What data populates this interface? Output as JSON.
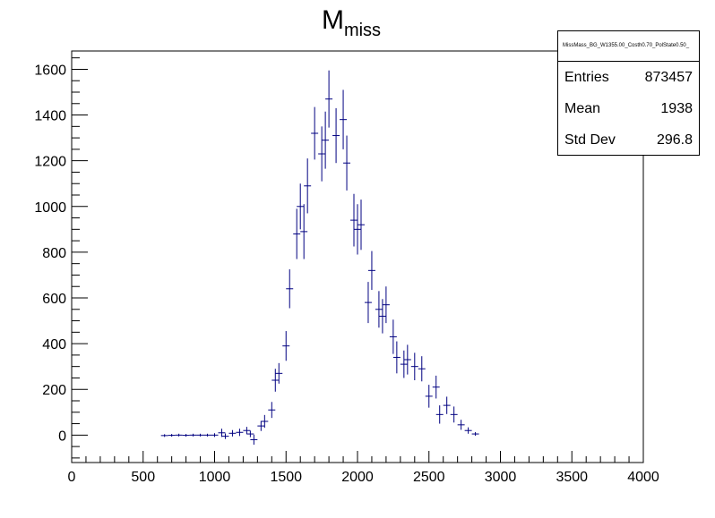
{
  "chart_data": {
    "type": "scatter",
    "title": "M",
    "title_subscript": "miss",
    "xlabel": "",
    "ylabel": "",
    "xlim": [
      0,
      4000
    ],
    "ylim": [
      -120,
      1680
    ],
    "x_ticks": [
      0,
      500,
      1000,
      1500,
      2000,
      2500,
      3000,
      3500,
      4000
    ],
    "y_ticks": [
      0,
      200,
      400,
      600,
      800,
      1000,
      1200,
      1400,
      1600
    ],
    "marker_color": "#000080",
    "bin_width": 50,
    "grid": false,
    "points": [
      {
        "x": 650,
        "y": -2,
        "err": 6
      },
      {
        "x": 700,
        "y": -1,
        "err": 6
      },
      {
        "x": 750,
        "y": 0,
        "err": 6
      },
      {
        "x": 800,
        "y": -1,
        "err": 6
      },
      {
        "x": 850,
        "y": 0,
        "err": 6
      },
      {
        "x": 900,
        "y": 0,
        "err": 6
      },
      {
        "x": 950,
        "y": 0,
        "err": 6
      },
      {
        "x": 1000,
        "y": 0,
        "err": 8
      },
      {
        "x": 1050,
        "y": 10,
        "err": 18
      },
      {
        "x": 1075,
        "y": -5,
        "err": 12
      },
      {
        "x": 1125,
        "y": 8,
        "err": 14
      },
      {
        "x": 1175,
        "y": 12,
        "err": 16
      },
      {
        "x": 1225,
        "y": 20,
        "err": 16
      },
      {
        "x": 1250,
        "y": 5,
        "err": 14
      },
      {
        "x": 1275,
        "y": -20,
        "err": 22
      },
      {
        "x": 1325,
        "y": 40,
        "err": 22
      },
      {
        "x": 1350,
        "y": 60,
        "err": 28
      },
      {
        "x": 1400,
        "y": 110,
        "err": 35
      },
      {
        "x": 1425,
        "y": 240,
        "err": 50
      },
      {
        "x": 1450,
        "y": 270,
        "err": 45
      },
      {
        "x": 1500,
        "y": 390,
        "err": 65
      },
      {
        "x": 1525,
        "y": 640,
        "err": 85
      },
      {
        "x": 1575,
        "y": 880,
        "err": 110
      },
      {
        "x": 1600,
        "y": 1000,
        "err": 100
      },
      {
        "x": 1625,
        "y": 890,
        "err": 120
      },
      {
        "x": 1650,
        "y": 1090,
        "err": 120
      },
      {
        "x": 1700,
        "y": 1320,
        "err": 115
      },
      {
        "x": 1750,
        "y": 1230,
        "err": 120
      },
      {
        "x": 1775,
        "y": 1290,
        "err": 125
      },
      {
        "x": 1800,
        "y": 1470,
        "err": 125
      },
      {
        "x": 1850,
        "y": 1310,
        "err": 120
      },
      {
        "x": 1900,
        "y": 1380,
        "err": 130
      },
      {
        "x": 1925,
        "y": 1190,
        "err": 120
      },
      {
        "x": 1975,
        "y": 940,
        "err": 115
      },
      {
        "x": 2000,
        "y": 900,
        "err": 110
      },
      {
        "x": 2025,
        "y": 920,
        "err": 110
      },
      {
        "x": 2075,
        "y": 580,
        "err": 90
      },
      {
        "x": 2100,
        "y": 720,
        "err": 85
      },
      {
        "x": 2150,
        "y": 550,
        "err": 80
      },
      {
        "x": 2175,
        "y": 520,
        "err": 75
      },
      {
        "x": 2200,
        "y": 570,
        "err": 80
      },
      {
        "x": 2250,
        "y": 430,
        "err": 75
      },
      {
        "x": 2275,
        "y": 340,
        "err": 70
      },
      {
        "x": 2325,
        "y": 310,
        "err": 60
      },
      {
        "x": 2350,
        "y": 330,
        "err": 65
      },
      {
        "x": 2400,
        "y": 300,
        "err": 60
      },
      {
        "x": 2450,
        "y": 290,
        "err": 55
      },
      {
        "x": 2500,
        "y": 170,
        "err": 50
      },
      {
        "x": 2550,
        "y": 210,
        "err": 50
      },
      {
        "x": 2575,
        "y": 90,
        "err": 40
      },
      {
        "x": 2625,
        "y": 130,
        "err": 38
      },
      {
        "x": 2675,
        "y": 90,
        "err": 35
      },
      {
        "x": 2725,
        "y": 45,
        "err": 22
      },
      {
        "x": 2775,
        "y": 20,
        "err": 14
      },
      {
        "x": 2825,
        "y": 5,
        "err": 8
      }
    ]
  },
  "stats": {
    "name": "MissMass_BG_W1355.00_Costh0.70_PolState0.50_",
    "rows": [
      {
        "label": "Entries",
        "value": "873457"
      },
      {
        "label": "Mean",
        "value": "1938"
      },
      {
        "label": "Std Dev",
        "value": "296.8"
      }
    ]
  }
}
